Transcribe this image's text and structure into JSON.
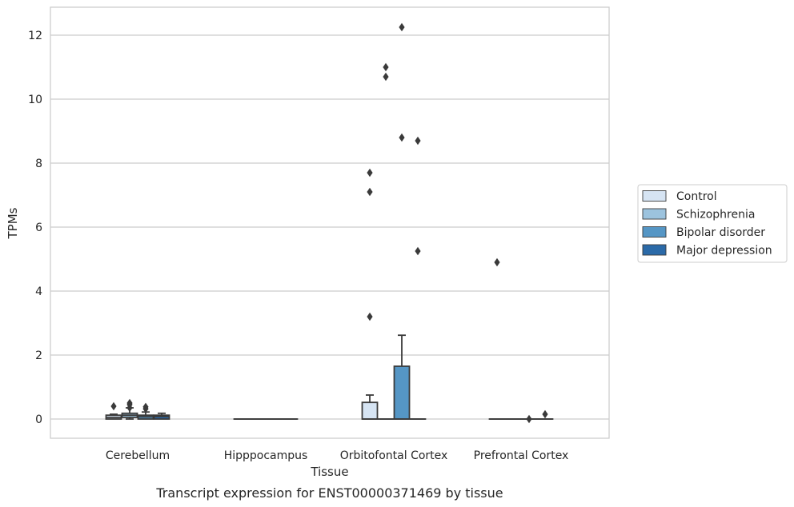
{
  "caption": "Transcript expression for ENST00000371469 by tissue",
  "chart_data": {
    "type": "box",
    "xlabel": "Tissue",
    "ylabel": "TPMs",
    "ylim": [
      -0.6,
      12.85
    ],
    "yticks": [
      0,
      2,
      4,
      6,
      8,
      10,
      12
    ],
    "grid": true,
    "legend_position": "right",
    "categories": [
      "Cerebellum",
      "Hipppocampus",
      "Orbitofontal Cortex",
      "Prefrontal Cortex"
    ],
    "series": [
      {
        "name": "Control",
        "color": "#d6e4f3",
        "boxes": [
          {
            "q1": 0.0,
            "median": 0.05,
            "q3": 0.12,
            "whisker_low": 0.0,
            "whisker_high": 0.15,
            "outliers": [
              0.4
            ]
          },
          {
            "q1": 0.0,
            "median": 0.0,
            "q3": 0.0,
            "whisker_low": 0.0,
            "whisker_high": 0.0,
            "outliers": []
          },
          {
            "q1": 0.0,
            "median": 0.0,
            "q3": 0.52,
            "whisker_low": 0.0,
            "whisker_high": 0.75,
            "outliers": [
              3.2,
              7.1,
              7.7
            ]
          },
          {
            "q1": 0.0,
            "median": 0.0,
            "q3": 0.0,
            "whisker_low": 0.0,
            "whisker_high": 0.0,
            "outliers": [
              4.9
            ]
          }
        ]
      },
      {
        "name": "Schizophrenia",
        "color": "#9cc3de",
        "boxes": [
          {
            "q1": 0.05,
            "median": 0.12,
            "q3": 0.18,
            "whisker_low": 0.0,
            "whisker_high": 0.35,
            "outliers": [
              0.35,
              0.45,
              0.5
            ]
          },
          {
            "q1": 0.0,
            "median": 0.0,
            "q3": 0.0,
            "whisker_low": 0.0,
            "whisker_high": 0.0,
            "outliers": []
          },
          {
            "q1": 0.0,
            "median": 0.0,
            "q3": 0.0,
            "whisker_low": 0.0,
            "whisker_high": 0.0,
            "outliers": [
              10.7,
              11.0
            ]
          },
          {
            "q1": 0.0,
            "median": 0.0,
            "q3": 0.0,
            "whisker_low": 0.0,
            "whisker_high": 0.0,
            "outliers": []
          }
        ]
      },
      {
        "name": "Bipolar disorder",
        "color": "#5596c5",
        "boxes": [
          {
            "q1": 0.0,
            "median": 0.07,
            "q3": 0.12,
            "whisker_low": 0.0,
            "whisker_high": 0.22,
            "outliers": [
              0.32,
              0.38
            ]
          },
          {
            "q1": 0.0,
            "median": 0.0,
            "q3": 0.0,
            "whisker_low": 0.0,
            "whisker_high": 0.0,
            "outliers": []
          },
          {
            "q1": 0.0,
            "median": 0.0,
            "q3": 1.65,
            "whisker_low": 0.0,
            "whisker_high": 2.62,
            "outliers": [
              8.8,
              12.25
            ]
          },
          {
            "q1": 0.0,
            "median": 0.0,
            "q3": 0.0,
            "whisker_low": 0.0,
            "whisker_high": 0.0,
            "outliers": [
              0.0
            ]
          }
        ]
      },
      {
        "name": "Major depression",
        "color": "#2b6aa8",
        "boxes": [
          {
            "q1": 0.0,
            "median": 0.08,
            "q3": 0.12,
            "whisker_low": 0.0,
            "whisker_high": 0.18,
            "outliers": []
          },
          {
            "q1": 0.0,
            "median": 0.0,
            "q3": 0.0,
            "whisker_low": 0.0,
            "whisker_high": 0.0,
            "outliers": []
          },
          {
            "q1": 0.0,
            "median": 0.0,
            "q3": 0.0,
            "whisker_low": 0.0,
            "whisker_high": 0.0,
            "outliers": [
              5.25,
              8.7
            ]
          },
          {
            "q1": 0.0,
            "median": 0.0,
            "q3": 0.0,
            "whisker_low": 0.0,
            "whisker_high": 0.0,
            "outliers": [
              0.15
            ]
          }
        ]
      }
    ]
  }
}
